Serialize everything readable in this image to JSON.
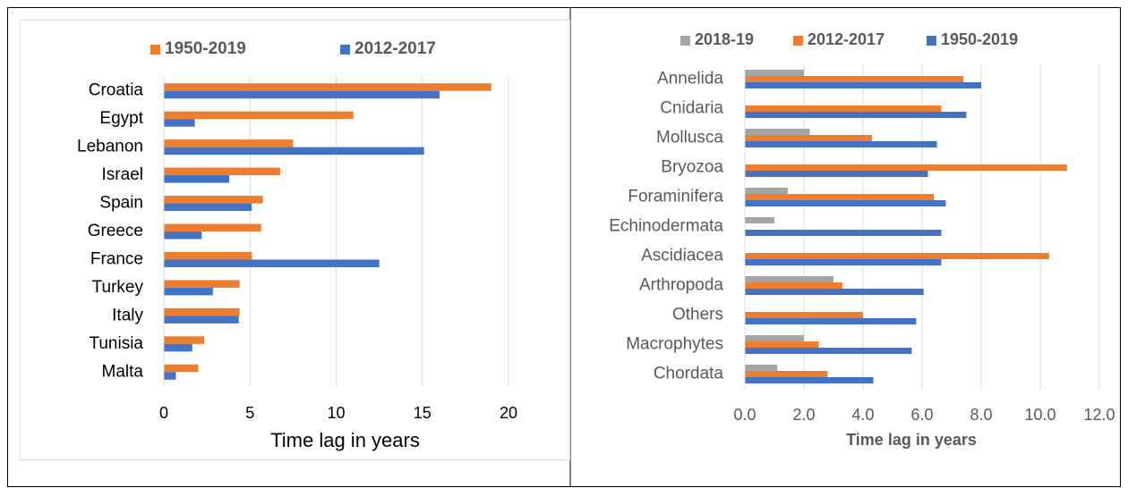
{
  "chart_data": [
    {
      "type": "bar",
      "orientation": "horizontal",
      "categories": [
        "Croatia",
        "Egypt",
        "Lebanon",
        "Israel",
        "Spain",
        "Greece",
        "France",
        "Turkey",
        "Italy",
        "Tunisia",
        "Malta"
      ],
      "series": [
        {
          "name": "1950-2019",
          "color": "#ed7d31",
          "values": [
            19.0,
            11.0,
            7.5,
            6.75,
            5.75,
            5.65,
            5.1,
            4.4,
            4.4,
            2.35,
            2.0
          ]
        },
        {
          "name": "2012-2017",
          "color": "#4472c4",
          "values": [
            16.0,
            1.8,
            15.1,
            3.8,
            5.1,
            2.2,
            12.5,
            2.85,
            4.35,
            1.65,
            0.7
          ]
        }
      ],
      "xlim": [
        0,
        20
      ],
      "xticks": [
        0,
        5,
        10,
        15,
        20
      ],
      "xlabel": "Time lag in years",
      "grid": true,
      "legend": "top"
    },
    {
      "type": "bar",
      "orientation": "horizontal",
      "categories": [
        "Annelida",
        "Cnidaria",
        "Mollusca",
        "Bryozoa",
        "Foraminifera",
        "Echinodermata",
        "Ascidiacea",
        "Arthropoda",
        "Others",
        "Macrophytes",
        "Chordata"
      ],
      "series": [
        {
          "name": "2018-19",
          "color": "#a5a5a5",
          "values": [
            2.0,
            null,
            2.2,
            null,
            1.45,
            1.0,
            null,
            3.0,
            null,
            2.0,
            1.1
          ]
        },
        {
          "name": "2012-2017",
          "color": "#ed7d31",
          "values": [
            7.4,
            6.65,
            4.3,
            10.9,
            6.4,
            null,
            10.3,
            3.3,
            4.0,
            2.5,
            2.8
          ]
        },
        {
          "name": "1950-2019",
          "color": "#4472c4",
          "values": [
            8.0,
            7.5,
            6.5,
            6.2,
            6.8,
            6.65,
            6.65,
            6.05,
            5.8,
            5.65,
            4.35
          ]
        }
      ],
      "xlim": [
        0,
        12
      ],
      "xticks": [
        {
          "value": 0,
          "label": "0.0"
        },
        {
          "value": 2,
          "label": "2.0"
        },
        {
          "value": 4,
          "label": "4.0"
        },
        {
          "value": 6,
          "label": "6.0"
        },
        {
          "value": 8,
          "label": "8.0"
        },
        {
          "value": 10,
          "label": "10.0"
        },
        {
          "value": 12,
          "label": "12.0"
        }
      ],
      "xlabel": "Time lag in years",
      "grid": true,
      "legend": "top"
    }
  ]
}
